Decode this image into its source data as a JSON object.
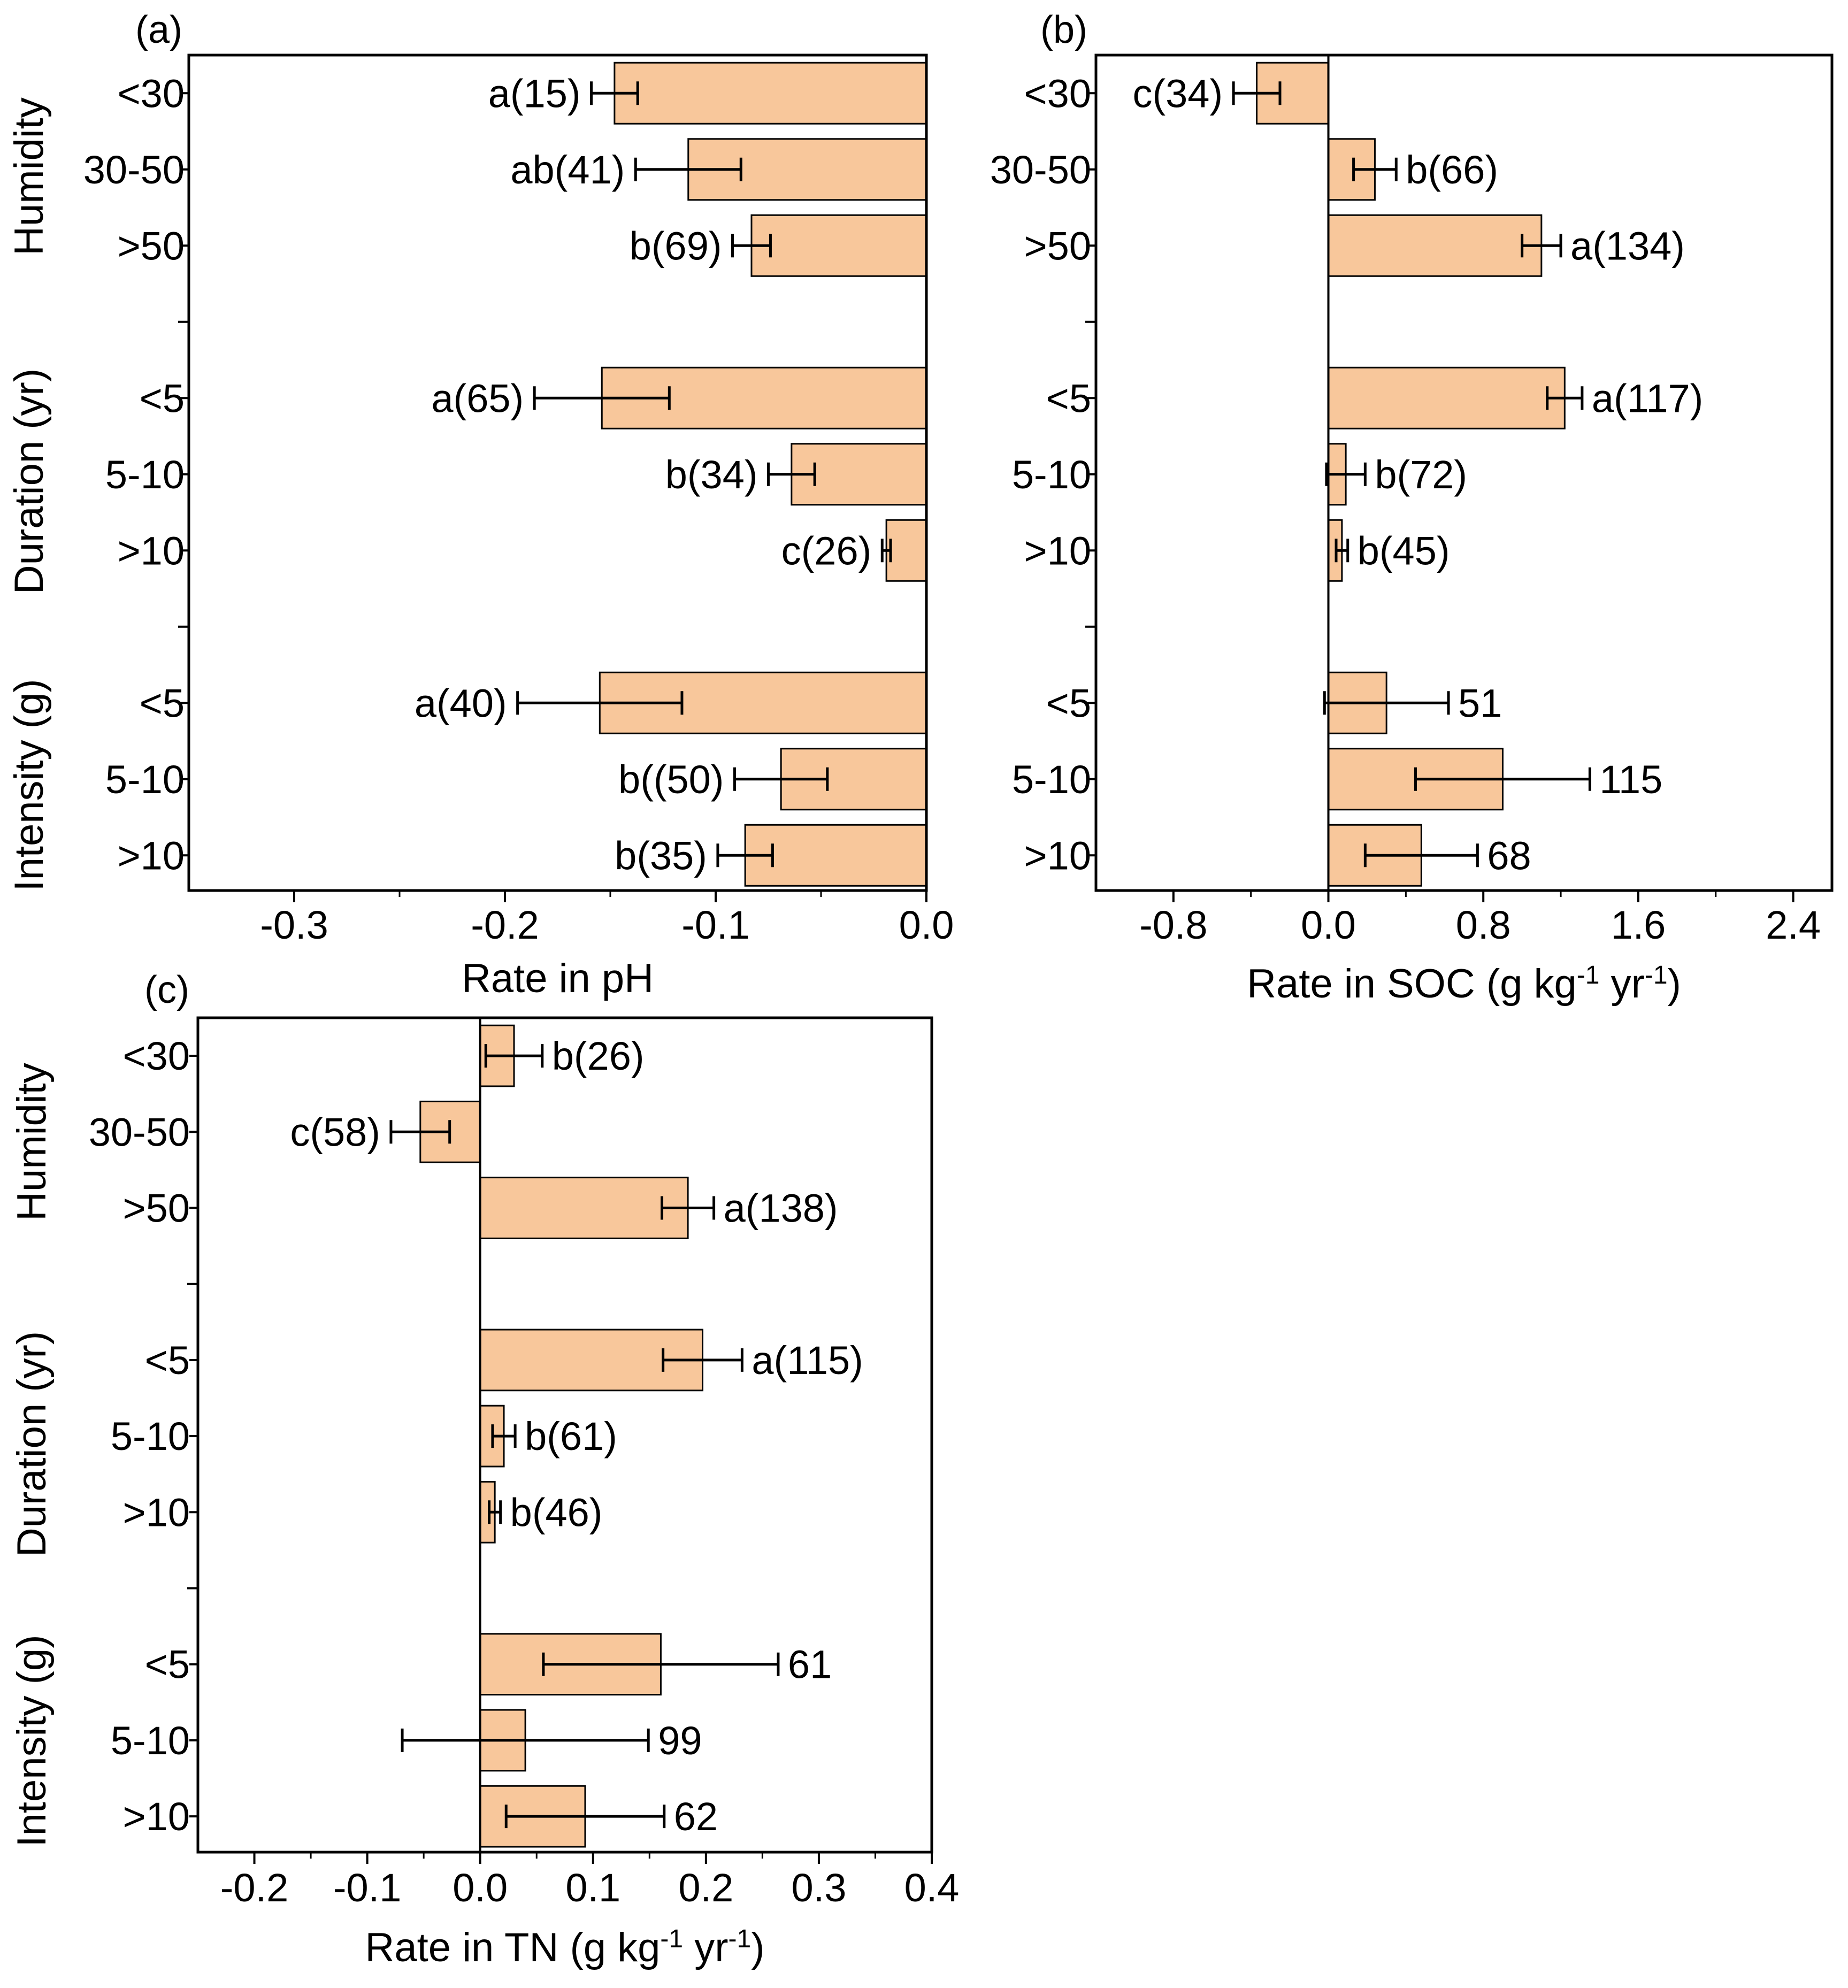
{
  "style": {
    "bar_fill": "#f8c79b",
    "bar_stroke": "#000000",
    "axis_color": "#000000"
  },
  "chart_data": [
    {
      "panel": "(a)",
      "type": "bar",
      "orientation": "horizontal",
      "xlabel": "Rate in pH",
      "xlim": [
        -0.35,
        0.0
      ],
      "xticks": [
        -0.3,
        -0.2,
        -0.1,
        0.0
      ],
      "xtick_labels": [
        "-0.3",
        "-0.2",
        "-0.1",
        "0.0"
      ],
      "groups": [
        {
          "title": "Humidity",
          "categories": [
            "<30",
            "30-50",
            ">50"
          ]
        },
        {
          "title": "Duration (yr)",
          "categories": [
            "<5",
            "5-10",
            ">10"
          ]
        },
        {
          "title": "Intensity (g)",
          "categories": [
            "<5",
            "5-10",
            ">10"
          ]
        }
      ],
      "values": [
        -0.148,
        -0.113,
        -0.083,
        -0.154,
        -0.064,
        -0.019,
        -0.155,
        -0.069,
        -0.086
      ],
      "errors": [
        0.011,
        0.025,
        0.009,
        0.032,
        0.011,
        0.002,
        0.039,
        0.022,
        0.013
      ],
      "labels": [
        "a(15)",
        "ab(41)",
        "b(69)",
        "a(65)",
        "b(34)",
        "c(26)",
        "a(40)",
        "b((50)",
        "b(35)"
      ]
    },
    {
      "panel": "(b)",
      "type": "bar",
      "orientation": "horizontal",
      "xlabel": "Rate in SOC (g kg",
      "xlabel_sup1": "-1",
      "xlabel_mid": " yr",
      "xlabel_sup2": "-1",
      "xlabel_end": ")",
      "xlim": [
        -1.2,
        2.6
      ],
      "xticks": [
        -0.8,
        0.0,
        0.8,
        1.6,
        2.4
      ],
      "xtick_labels": [
        "-0.8",
        "0.0",
        "0.8",
        "1.6",
        "2.4"
      ],
      "groups": [
        {
          "title": "",
          "categories": [
            "<30",
            "30-50",
            ">50"
          ]
        },
        {
          "title": "",
          "categories": [
            "<5",
            "5-10",
            ">10"
          ]
        },
        {
          "title": "",
          "categories": [
            "<5",
            "5-10",
            ">10"
          ]
        }
      ],
      "values": [
        -0.37,
        0.24,
        1.1,
        1.22,
        0.09,
        0.07,
        0.3,
        0.9,
        0.48
      ],
      "errors": [
        0.12,
        0.11,
        0.1,
        0.09,
        0.1,
        0.03,
        0.32,
        0.45,
        0.29
      ],
      "labels": [
        "c(34)",
        "b(66)",
        "a(134)",
        "a(117)",
        "b(72)",
        "b(45)",
        "51",
        "115",
        "68"
      ]
    },
    {
      "panel": "(c)",
      "type": "bar",
      "orientation": "horizontal",
      "xlabel": "Rate in TN (g kg",
      "xlabel_sup1": "-1",
      "xlabel_mid": " yr",
      "xlabel_sup2": "-1",
      "xlabel_end": ")",
      "xlim": [
        -0.25,
        0.4
      ],
      "xticks": [
        -0.2,
        -0.1,
        0.0,
        0.1,
        0.2,
        0.3,
        0.4
      ],
      "xtick_labels": [
        "-0.2",
        "-0.1",
        "0.0",
        "0.1",
        "0.2",
        "0.3",
        "0.4"
      ],
      "groups": [
        {
          "title": "Humidity",
          "categories": [
            "<30",
            "30-50",
            ">50"
          ]
        },
        {
          "title": "Duration (yr)",
          "categories": [
            "<5",
            "5-10",
            ">10"
          ]
        },
        {
          "title": "Intensity (g)",
          "categories": [
            "<5",
            "5-10",
            ">10"
          ]
        }
      ],
      "values": [
        0.03,
        -0.053,
        0.184,
        0.197,
        0.021,
        0.013,
        0.16,
        0.04,
        0.093
      ],
      "errors": [
        0.025,
        0.026,
        0.023,
        0.035,
        0.01,
        0.005,
        0.104,
        0.109,
        0.07
      ],
      "labels": [
        "b(26)",
        "c(58)",
        "a(138)",
        "a(115)",
        "b(61)",
        "b(46)",
        "61",
        "99",
        "62"
      ]
    }
  ]
}
